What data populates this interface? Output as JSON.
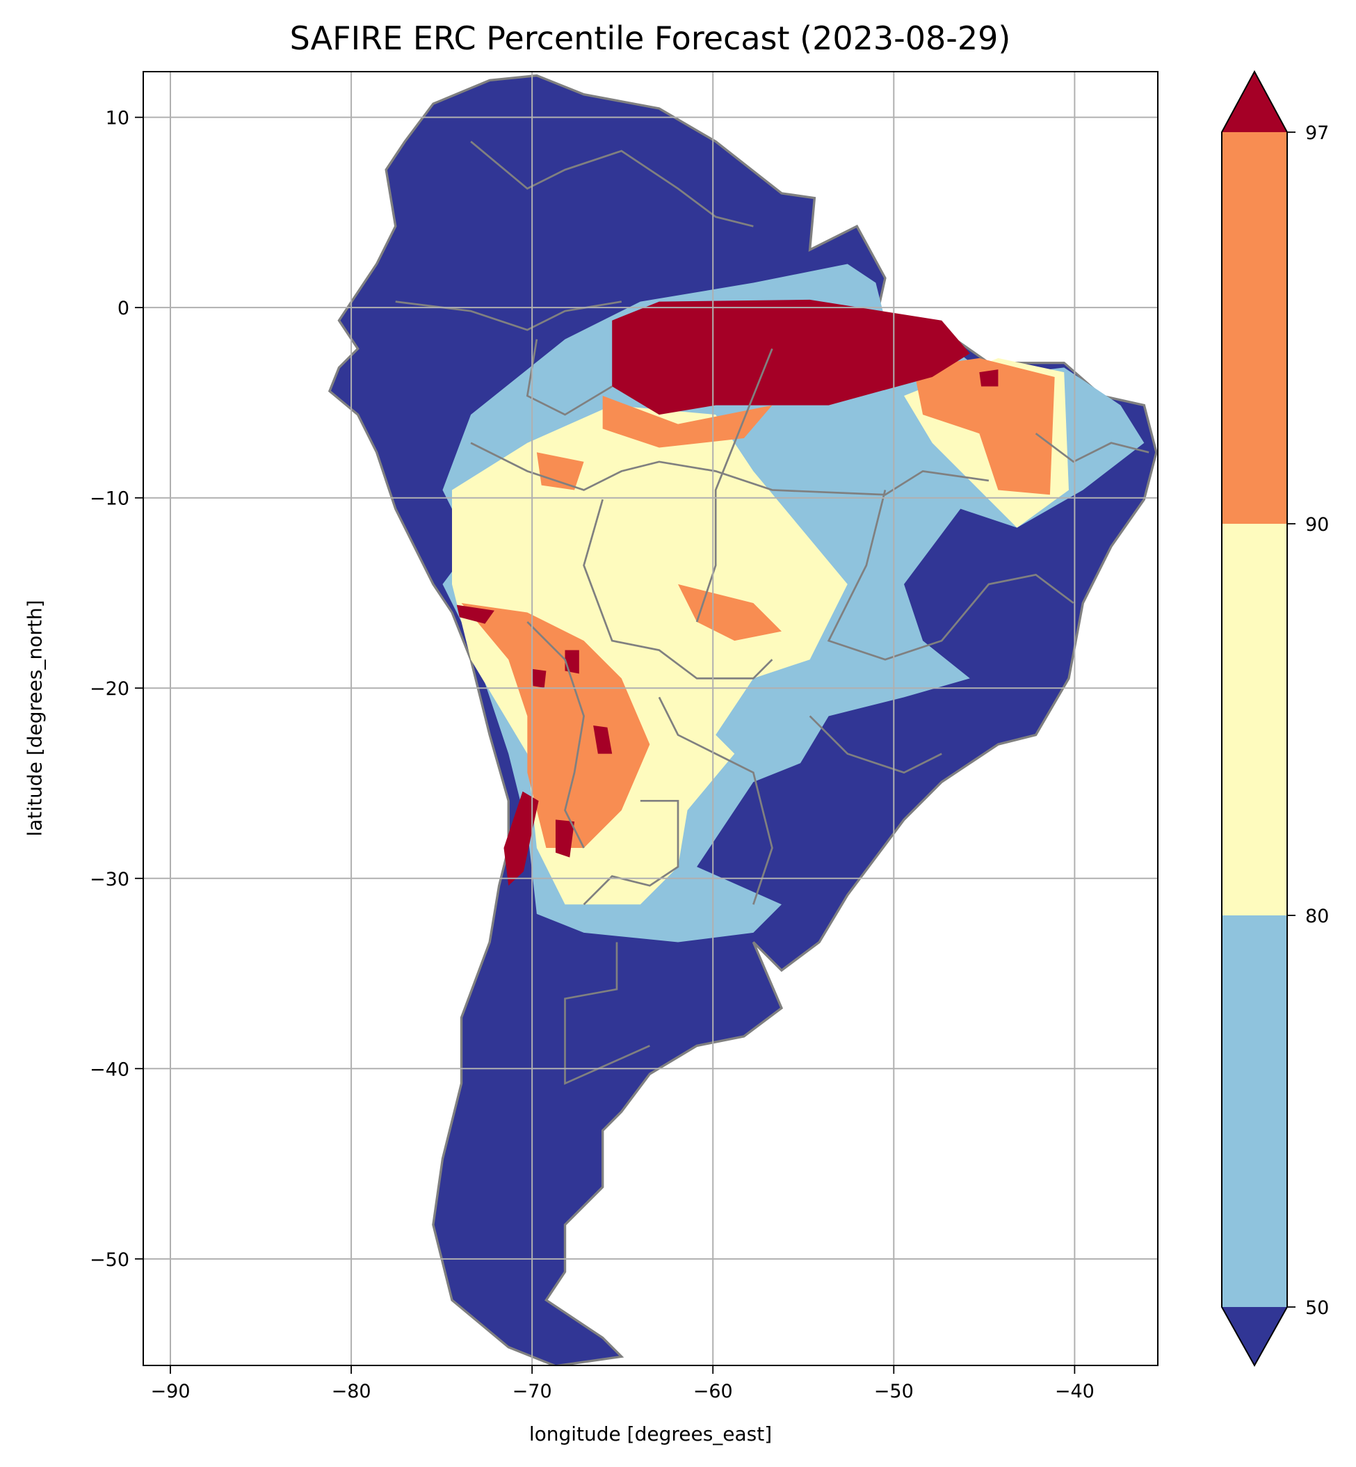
{
  "chart_data": {
    "type": "heatmap",
    "title": "SAFIRE ERC Percentile Forecast (2023-08-29)",
    "xlabel": "longitude [degrees_east]",
    "ylabel": "latitude [degrees_north]",
    "xlim": [
      -91.5,
      -35.4
    ],
    "ylim": [
      -55.6,
      12.4
    ],
    "xticks": [
      -90,
      -80,
      -70,
      -60,
      -50,
      -40
    ],
    "yticks": [
      10,
      0,
      -10,
      -20,
      -30,
      -40,
      -50
    ],
    "grid": true,
    "colorbar": {
      "levels": [
        50,
        80,
        90,
        97
      ],
      "tick_labels": [
        "50",
        "80",
        "90",
        "97"
      ],
      "extend": "both",
      "colors": {
        "below_50": "#313695",
        "50-80": "#8fc3dd",
        "80-90": "#fefbbe",
        "90-97": "#f88d52",
        "above_97": "#a50026"
      }
    },
    "border_color": "#808080",
    "gridline_color": "#b0b0b0"
  }
}
